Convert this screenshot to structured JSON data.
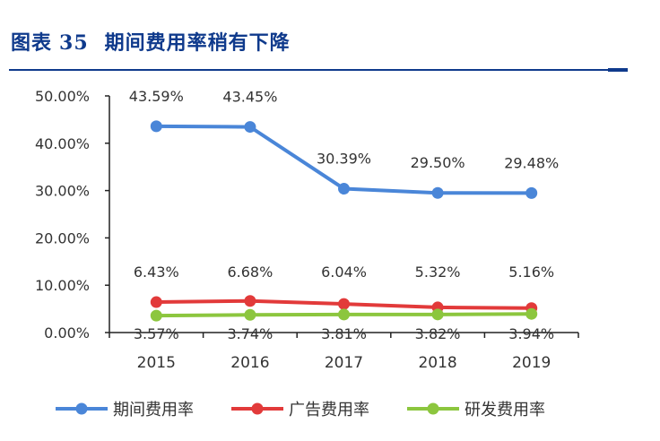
{
  "header": {
    "prefix": "图表",
    "number": "35",
    "title": "期间费用率稍有下降"
  },
  "chart_data": {
    "type": "line",
    "title": "期间费用率稍有下降",
    "categories": [
      "2015",
      "2016",
      "2017",
      "2018",
      "2019"
    ],
    "ylim": [
      0,
      50
    ],
    "yticks": [
      "0.00%",
      "10.00%",
      "20.00%",
      "30.00%",
      "40.00%",
      "50.00%"
    ],
    "grid": false,
    "legend_position": "bottom",
    "series": [
      {
        "name": "期间费用率",
        "color": "#4a86d8",
        "values": [
          43.59,
          43.45,
          30.39,
          29.5,
          29.48
        ],
        "labels": [
          "43.59%",
          "43.45%",
          "30.39%",
          "29.50%",
          "29.48%"
        ]
      },
      {
        "name": "广告费用率",
        "color": "#e23a3a",
        "values": [
          6.43,
          6.68,
          6.04,
          5.32,
          5.16
        ],
        "labels": [
          "6.43%",
          "6.68%",
          "6.04%",
          "5.32%",
          "5.16%"
        ]
      },
      {
        "name": "研发费用率",
        "color": "#8cc63e",
        "values": [
          3.57,
          3.74,
          3.81,
          3.82,
          3.94
        ],
        "labels": [
          "3.57%",
          "3.74%",
          "3.81%",
          "3.82%",
          "3.94%"
        ]
      }
    ]
  }
}
